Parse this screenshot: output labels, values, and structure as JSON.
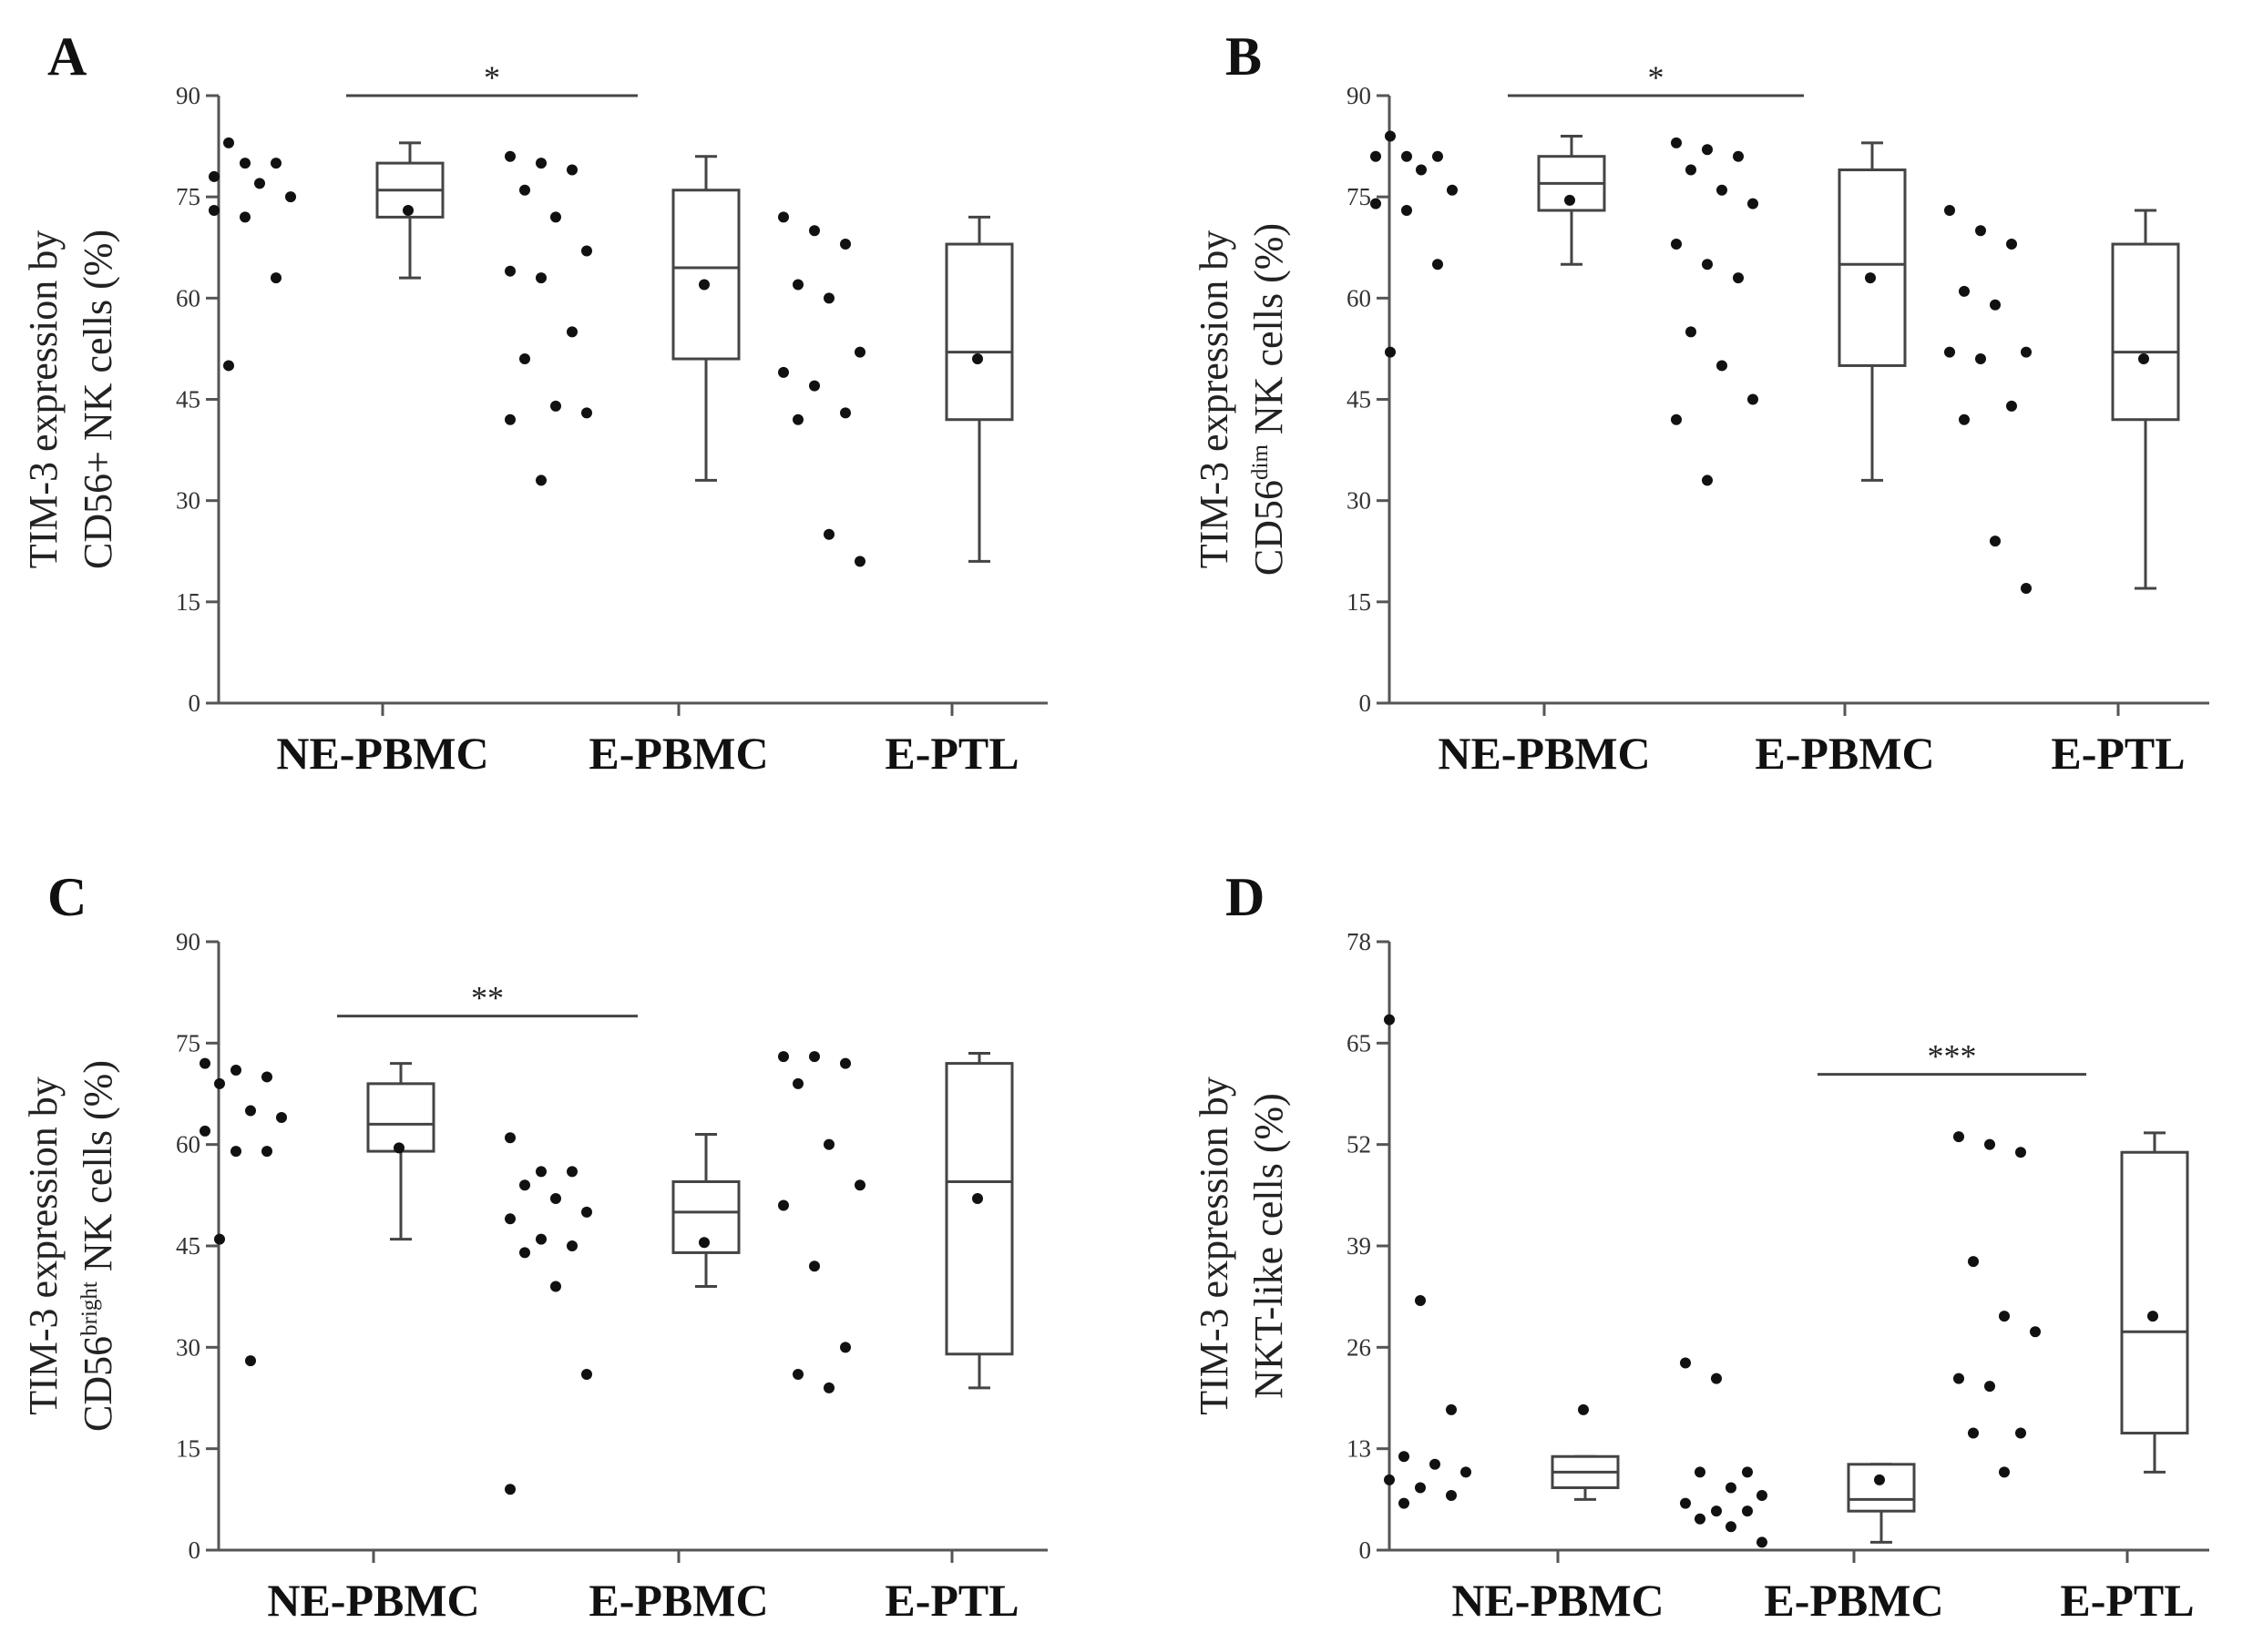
{
  "chart_data": [
    {
      "type": "box",
      "panel": "A",
      "ylabel_line1": "TIM-3 expression by",
      "ylabel_line2_pre": "CD56+ NK cells (%)",
      "ylabel_line2_sup": "",
      "ylabel_line2_post": "",
      "yticks": [
        0,
        15,
        30,
        45,
        60,
        75,
        90
      ],
      "ylim": [
        0,
        90
      ],
      "categories": [
        "NE-PBMC",
        "E-PBMC",
        "E-PTL"
      ],
      "groups": [
        {
          "points": [
            78,
            80,
            80,
            83,
            77,
            75,
            73,
            72,
            63,
            50
          ],
          "q1": 72,
          "median": 76,
          "q3": 80,
          "low": 63,
          "high": 83,
          "mean": 73
        },
        {
          "points": [
            81,
            80,
            79,
            76,
            72,
            67,
            64,
            63,
            55,
            51,
            44,
            43,
            42,
            33
          ],
          "q1": 51,
          "median": 64.5,
          "q3": 76,
          "low": 33,
          "high": 81,
          "mean": 62
        },
        {
          "points": [
            72,
            70,
            68,
            62,
            60,
            52,
            49,
            47,
            43,
            42,
            25,
            21
          ],
          "q1": 42,
          "median": 52,
          "q3": 68,
          "low": 21,
          "high": 72,
          "mean": 51
        }
      ],
      "significance": {
        "from": 0,
        "to": 1,
        "label": "*",
        "y": 90
      }
    },
    {
      "type": "box",
      "panel": "B",
      "ylabel_line1": "TIM-3 expression by",
      "ylabel_line2_pre": "CD56",
      "ylabel_line2_sup": "dim",
      "ylabel_line2_post": " NK cells (%)",
      "yticks": [
        0,
        15,
        30,
        45,
        60,
        75,
        90
      ],
      "ylim": [
        0,
        90
      ],
      "categories": [
        "NE-PBMC",
        "E-PBMC",
        "E-PTL"
      ],
      "groups": [
        {
          "points": [
            81,
            81,
            81,
            84,
            79,
            76,
            74,
            73,
            65,
            52
          ],
          "q1": 73,
          "median": 77,
          "q3": 81,
          "low": 65,
          "high": 84,
          "mean": 74.5
        },
        {
          "points": [
            83,
            82,
            81,
            79,
            76,
            74,
            68,
            65,
            63,
            55,
            50,
            45,
            42,
            33
          ],
          "q1": 50,
          "median": 65,
          "q3": 79,
          "low": 33,
          "high": 83,
          "mean": 63
        },
        {
          "points": [
            73,
            70,
            68,
            61,
            59,
            52,
            52,
            51,
            44,
            42,
            24,
            17
          ],
          "q1": 42,
          "median": 52,
          "q3": 68,
          "low": 17,
          "high": 73,
          "mean": 51
        }
      ],
      "significance": {
        "from": 0,
        "to": 1,
        "label": "*",
        "y": 90
      }
    },
    {
      "type": "box",
      "panel": "C",
      "ylabel_line1": "TIM-3 expression by",
      "ylabel_line2_pre": "CD56",
      "ylabel_line2_sup": "bright",
      "ylabel_line2_post": " NK cells (%)",
      "yticks": [
        0,
        15,
        30,
        45,
        60,
        75,
        90
      ],
      "ylim": [
        0,
        90
      ],
      "categories": [
        "NE-PBMC",
        "E-PBMC",
        "E-PTL"
      ],
      "groups": [
        {
          "points": [
            72,
            71,
            70,
            69,
            65,
            64,
            62,
            59,
            59,
            46,
            28
          ],
          "q1": 59,
          "median": 63,
          "q3": 69,
          "low": 46,
          "high": 72,
          "mean": 59.5
        },
        {
          "points": [
            61,
            56,
            56,
            54,
            52,
            50,
            49,
            46,
            45,
            44,
            39,
            26,
            9
          ],
          "q1": 44,
          "median": 50,
          "q3": 54.5,
          "low": 39,
          "high": 61.5,
          "mean": 45.5
        },
        {
          "points": [
            73,
            73,
            72,
            69,
            60,
            54,
            51,
            42,
            30,
            26,
            24
          ],
          "q1": 29,
          "median": 54.5,
          "q3": 72,
          "low": 24,
          "high": 73.5,
          "mean": 52
        }
      ],
      "significance": {
        "from": 0,
        "to": 1,
        "label": "**",
        "y": 79
      }
    },
    {
      "type": "box",
      "panel": "D",
      "ylabel_line1": "TIM-3 expression by",
      "ylabel_line2_pre": "NKT-like cells (%)",
      "ylabel_line2_sup": "",
      "ylabel_line2_post": "",
      "yticks": [
        0,
        13,
        26,
        39,
        52,
        65,
        78
      ],
      "ylim": [
        0,
        78
      ],
      "categories": [
        "NE-PBMC",
        "E-PBMC",
        "E-PTL"
      ],
      "groups": [
        {
          "points": [
            68,
            32,
            18,
            12,
            11,
            10,
            9,
            8,
            7,
            6
          ],
          "q1": 8,
          "median": 10,
          "q3": 12,
          "low": 6.5,
          "high": 12,
          "mean": 18
        },
        {
          "points": [
            24,
            22,
            10,
            10,
            8,
            7,
            6,
            5,
            5,
            4,
            3,
            1
          ],
          "q1": 5,
          "median": 6.5,
          "q3": 11,
          "low": 1,
          "high": 11,
          "mean": 9
        },
        {
          "points": [
            53,
            52,
            51,
            37,
            30,
            28,
            22,
            21,
            15,
            15,
            10
          ],
          "q1": 15,
          "median": 28,
          "q3": 51,
          "low": 10,
          "high": 53.5,
          "mean": 30
        }
      ],
      "significance": {
        "from": 1,
        "to": 2,
        "label": "***",
        "y": 61
      }
    }
  ]
}
